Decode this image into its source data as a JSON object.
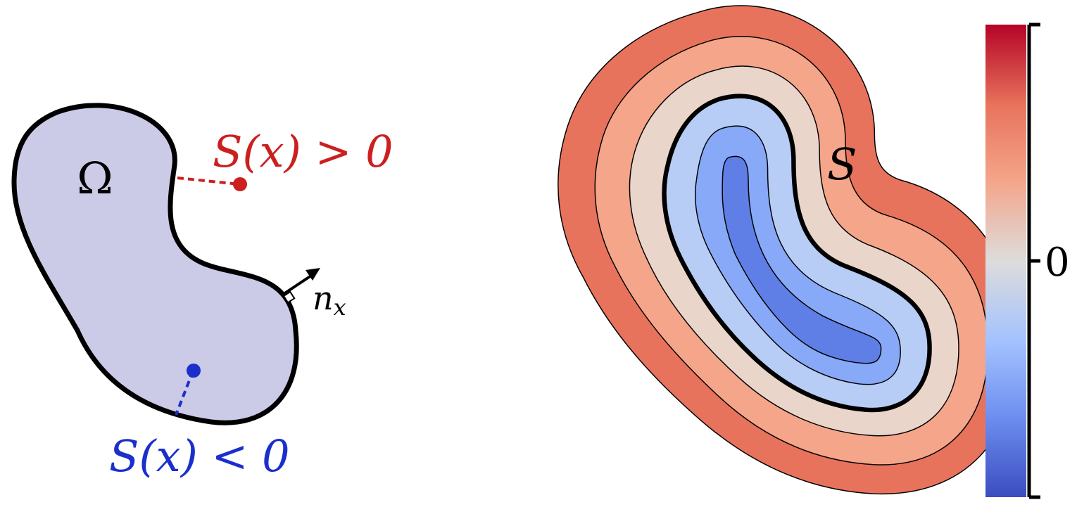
{
  "left_panel": {
    "domain_label": "Ω",
    "outside_label": "S(x) > 0",
    "inside_label": "S(x) < 0",
    "normal_label_base": "n",
    "normal_label_sub": "x",
    "colors": {
      "domain_fill": "#cbcbe8",
      "outline": "#000000",
      "outside": "#cc1f1f",
      "inside": "#1a2fcc"
    }
  },
  "right_panel": {
    "field_label": "S",
    "contour_level_colors": [
      "#e8735c",
      "#f4a58a",
      "#ead5cb",
      "#b7cdf5",
      "#87a9f7",
      "#5f7fe6"
    ],
    "zero_level_emphasized": true
  },
  "colorbar": {
    "tick_label": "0",
    "colormap": "coolwarm",
    "colormap_stops": [
      "#b40426",
      "#e8735c",
      "#f4a58a",
      "#dddcdc",
      "#a4c2fe",
      "#6d8ff0",
      "#3b4cc0"
    ]
  }
}
